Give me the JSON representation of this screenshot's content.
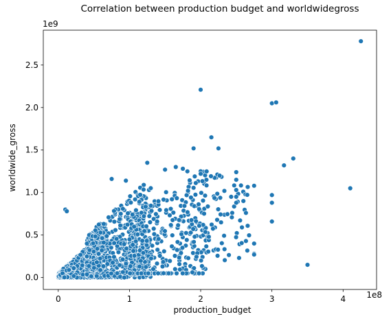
{
  "chart_data": {
    "type": "scatter",
    "title": "Correlation between production budget and worldwidegross",
    "xlabel": "production_budget",
    "ylabel": "worldwide_gross",
    "x_offset_label": "1e8",
    "y_offset_label": "1e9",
    "xlim": [
      -0.21,
      4.47
    ],
    "ylim": [
      -0.14,
      2.91
    ],
    "x_ticks": [
      0,
      1,
      2,
      3,
      4
    ],
    "x_tick_labels": [
      "0",
      "1",
      "2",
      "3",
      "4"
    ],
    "y_ticks": [
      0.0,
      0.5,
      1.0,
      1.5,
      2.0,
      2.5
    ],
    "y_tick_labels": [
      "0.0",
      "0.5",
      "1.0",
      "1.5",
      "2.0",
      "2.5"
    ],
    "grid": false,
    "point_color": "#1f77b4",
    "notable_points": [
      {
        "x": 4.25,
        "y": 2.78
      },
      {
        "x": 2.0,
        "y": 2.21
      },
      {
        "x": 3.0,
        "y": 2.05
      },
      {
        "x": 3.06,
        "y": 2.06
      },
      {
        "x": 2.15,
        "y": 1.65
      },
      {
        "x": 1.9,
        "y": 1.52
      },
      {
        "x": 2.25,
        "y": 1.52
      },
      {
        "x": 3.3,
        "y": 1.4
      },
      {
        "x": 3.17,
        "y": 1.32
      },
      {
        "x": 1.25,
        "y": 1.35
      },
      {
        "x": 4.1,
        "y": 1.05
      },
      {
        "x": 3.5,
        "y": 0.15
      },
      {
        "x": 3.0,
        "y": 0.66
      },
      {
        "x": 3.0,
        "y": 0.97
      },
      {
        "x": 3.0,
        "y": 0.88
      },
      {
        "x": 2.75,
        "y": 1.08
      },
      {
        "x": 2.75,
        "y": 0.4
      },
      {
        "x": 2.75,
        "y": 0.28
      },
      {
        "x": 2.75,
        "y": 0.27
      },
      {
        "x": 2.6,
        "y": 0.9
      },
      {
        "x": 2.58,
        "y": 0.59
      },
      {
        "x": 2.5,
        "y": 1.24
      },
      {
        "x": 2.5,
        "y": 1.15
      },
      {
        "x": 2.5,
        "y": 1.03
      },
      {
        "x": 2.5,
        "y": 0.95
      },
      {
        "x": 2.5,
        "y": 0.88
      },
      {
        "x": 2.0,
        "y": 1.25
      },
      {
        "x": 2.0,
        "y": 1.22
      },
      {
        "x": 1.75,
        "y": 1.28
      },
      {
        "x": 1.65,
        "y": 1.3
      },
      {
        "x": 1.5,
        "y": 1.27
      },
      {
        "x": 0.75,
        "y": 1.16
      },
      {
        "x": 0.95,
        "y": 1.14
      },
      {
        "x": 0.1,
        "y": 0.8
      },
      {
        "x": 0.12,
        "y": 0.78
      }
    ]
  }
}
